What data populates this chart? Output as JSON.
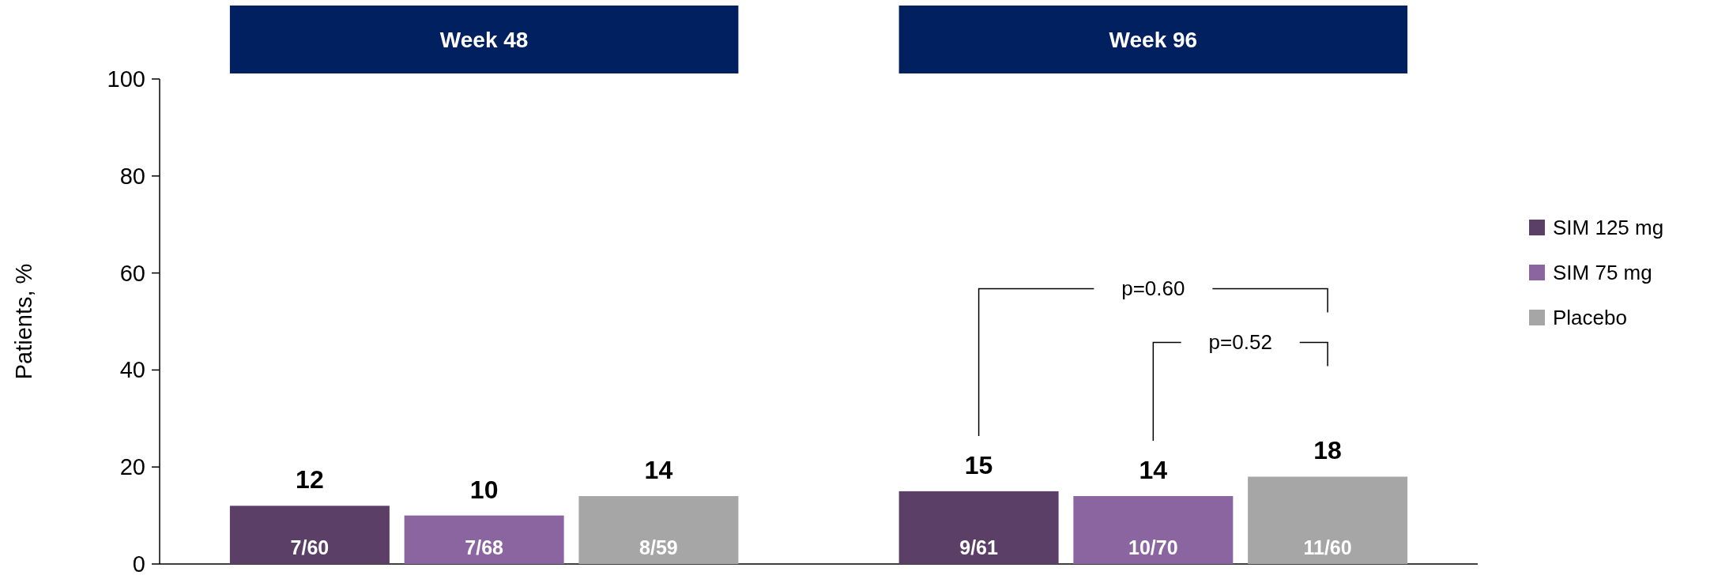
{
  "chart_data": {
    "type": "bar",
    "ylabel": "Patients, %",
    "categories": [
      "Week 48",
      "Week 96"
    ],
    "series": [
      {
        "name": "SIM 125 mg",
        "color": "#5b3f66",
        "values": [
          12,
          15
        ],
        "value_labels": [
          "12",
          "15"
        ]
      },
      {
        "name": "SIM 75 mg",
        "color": "#8a65a0",
        "values": [
          10,
          14
        ],
        "value_labels": [
          "10",
          "14"
        ]
      },
      {
        "name": "Placebo",
        "color": "#a6a6a6",
        "values": [
          14,
          18
        ],
        "value_labels": [
          "14",
          "18"
        ]
      }
    ],
    "ylim": [
      0,
      100
    ],
    "yticks": [
      0,
      20,
      40,
      60,
      80,
      100
    ],
    "legend": "right",
    "grid": false,
    "annotations": [
      "p=0.60",
      "p=0.52",
      "7/60",
      "9/61",
      "7/68",
      "10/70",
      "8/59",
      "11/60"
    ]
  }
}
